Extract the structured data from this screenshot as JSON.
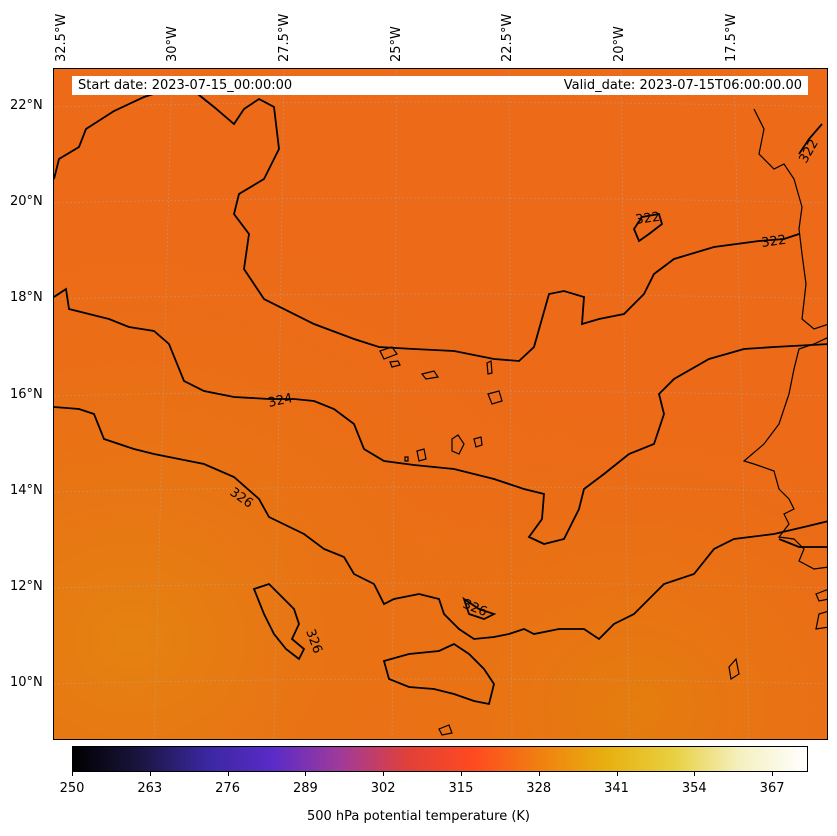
{
  "header": {
    "start_date": "Start date: 2023-07-15_00:00:00",
    "valid_date": "Valid_date: 2023-07-15T06:00:00.00"
  },
  "lon_labels": [
    "32.5°W",
    "30°W",
    "27.5°W",
    "25°W",
    "22.5°W",
    "20°W",
    "17.5°W"
  ],
  "lat_labels": [
    "22°N",
    "20°N",
    "18°N",
    "16°N",
    "14°N",
    "12°N",
    "10°N"
  ],
  "contour_labels": [
    "322",
    "322",
    "322",
    "324",
    "326",
    "326",
    "326"
  ],
  "colorbar": {
    "label": "500 hPa potential temperature (K)",
    "ticks": [
      "250",
      "263",
      "276",
      "289",
      "302",
      "315",
      "328",
      "341",
      "354",
      "367"
    ],
    "min": 250,
    "max": 373,
    "colors": [
      "#000000",
      "#1a1540",
      "#3a27a0",
      "#5a2bc8",
      "#a03a9a",
      "#e0403a",
      "#ff4a20",
      "#f08010",
      "#e8b010",
      "#e8d040",
      "#f5f0c0",
      "#ffffff"
    ]
  },
  "map": {
    "field_color": "#ec6a18",
    "warm_region_color": "#e57f0e",
    "coast_color": "#000000",
    "grid": true
  }
}
